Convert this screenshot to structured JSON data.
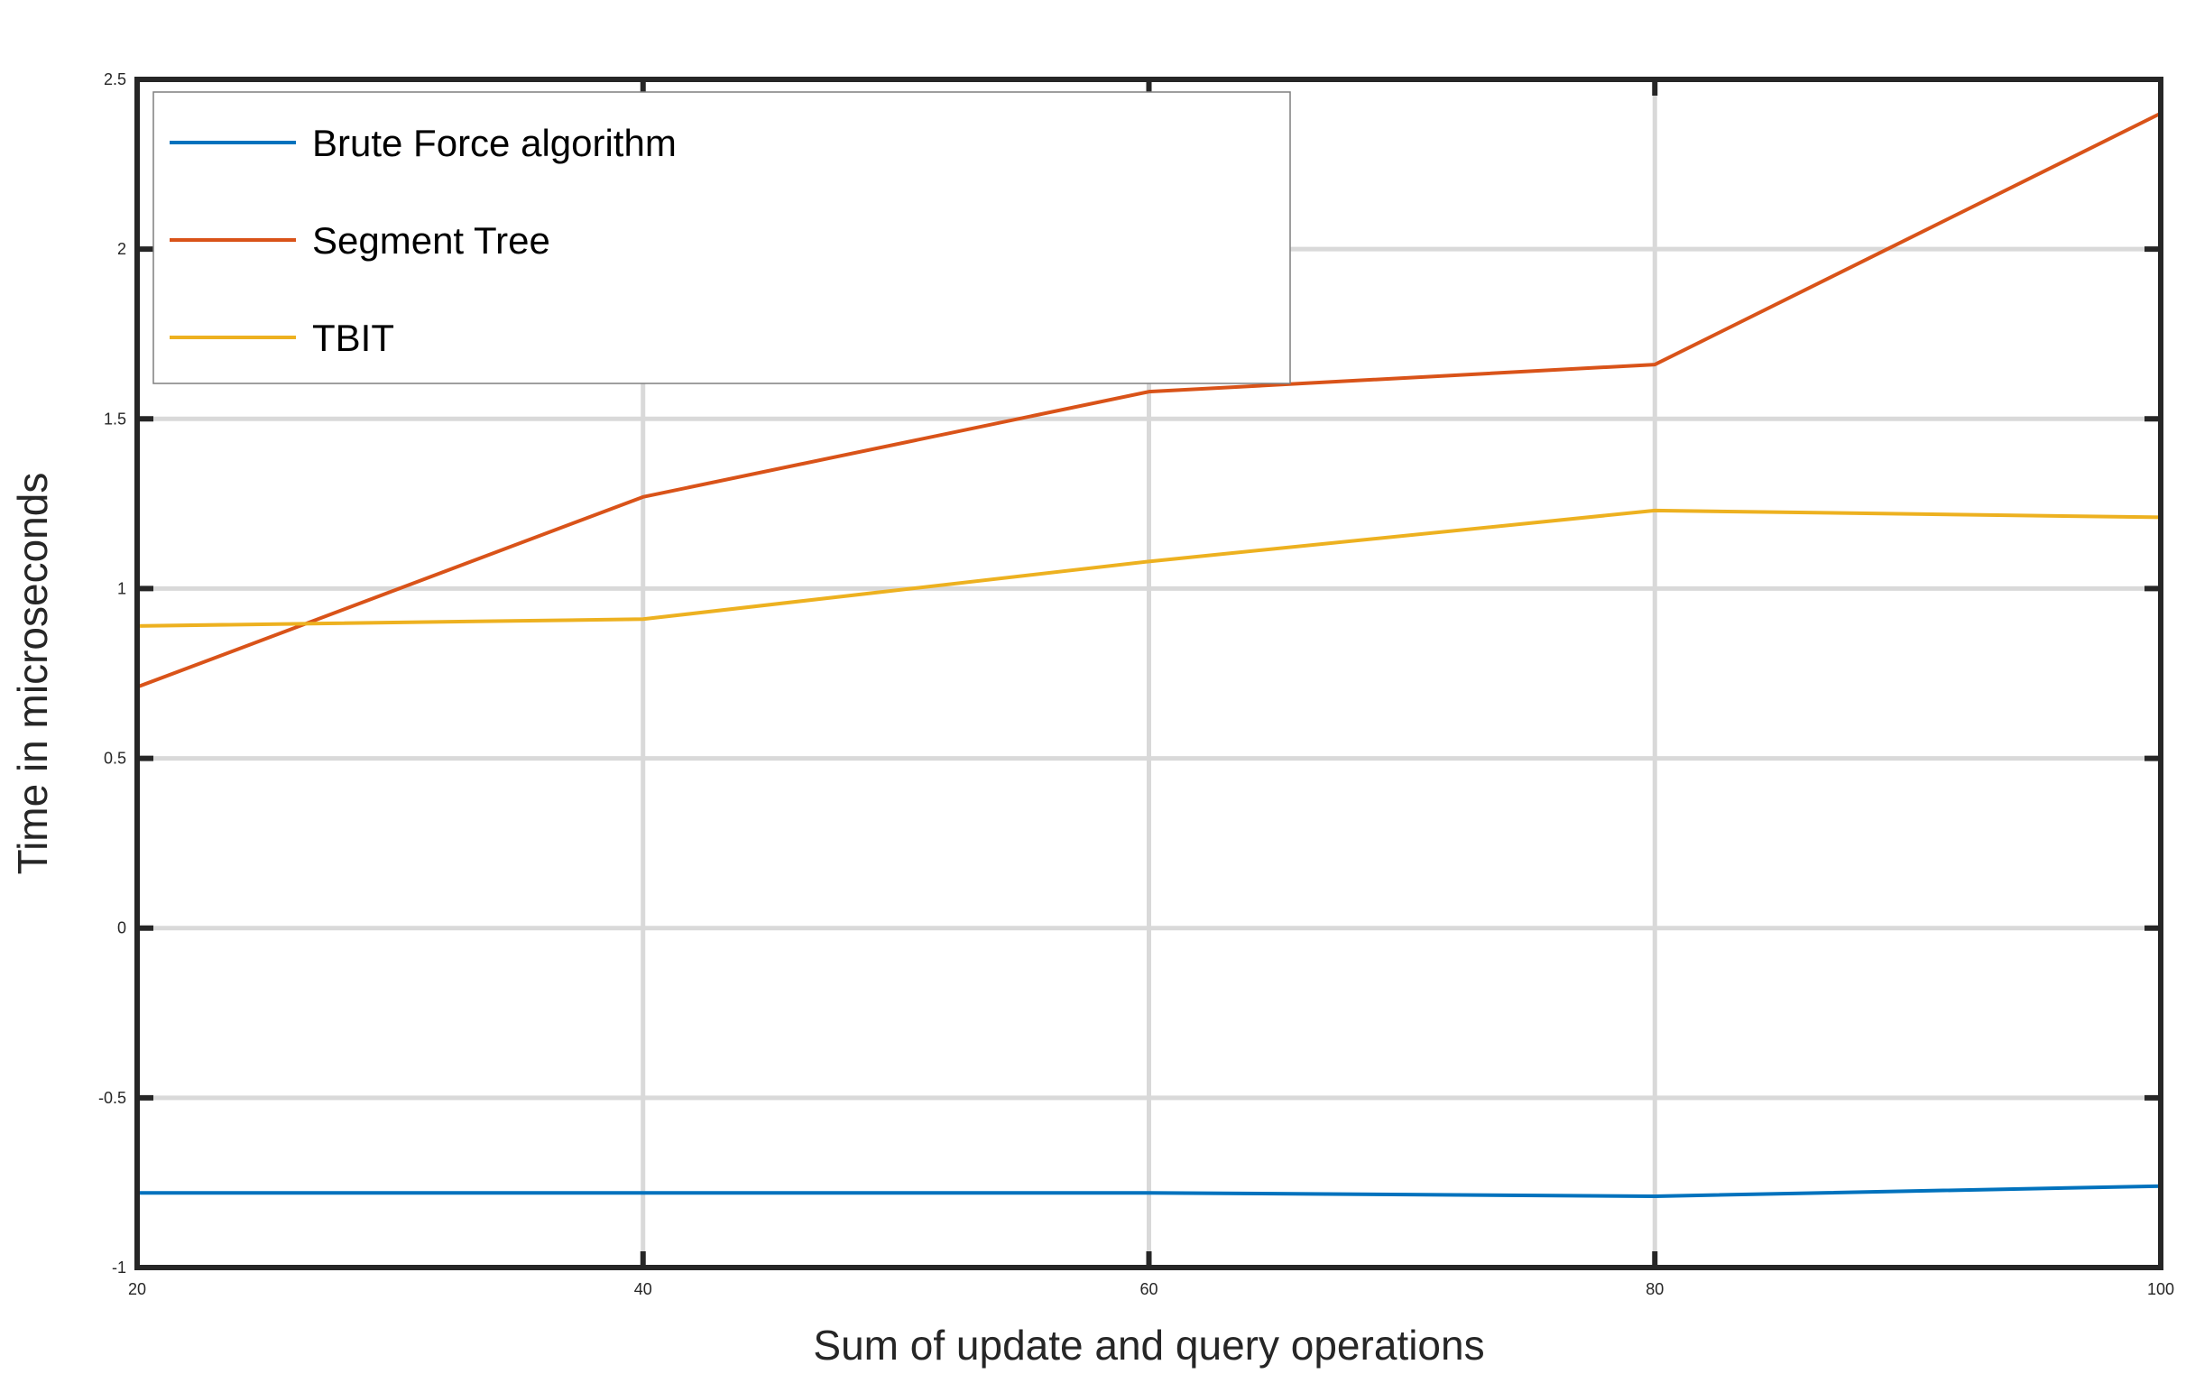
{
  "chart_data": {
    "type": "line",
    "title": "",
    "xlabel": "Sum of update and query operations",
    "ylabel": "Time in microseconds",
    "x": [
      20,
      40,
      60,
      80,
      100
    ],
    "xlim": [
      20,
      100
    ],
    "ylim": [
      -1,
      2.5
    ],
    "xticks": [
      20,
      40,
      60,
      80,
      100
    ],
    "yticks": [
      -1,
      -0.5,
      0,
      0.5,
      1,
      1.5,
      2,
      2.5
    ],
    "xtick_labels": [
      "20",
      "40",
      "60",
      "80",
      "100"
    ],
    "ytick_labels": [
      "-1",
      "-0.5",
      "0",
      "0.5",
      "1",
      "1.5",
      "2",
      "2.5"
    ],
    "grid": true,
    "legend_position": "top-left",
    "series": [
      {
        "name": "Brute Force algorithm",
        "color": "#0072BD",
        "values": [
          -0.78,
          -0.78,
          -0.78,
          -0.79,
          -0.76
        ]
      },
      {
        "name": "Segment Tree",
        "color": "#D95319",
        "values": [
          0.71,
          1.27,
          1.58,
          1.66,
          2.4
        ]
      },
      {
        "name": "TBIT",
        "color": "#EDB120",
        "values": [
          0.89,
          0.91,
          1.08,
          1.23,
          1.21
        ]
      }
    ]
  }
}
